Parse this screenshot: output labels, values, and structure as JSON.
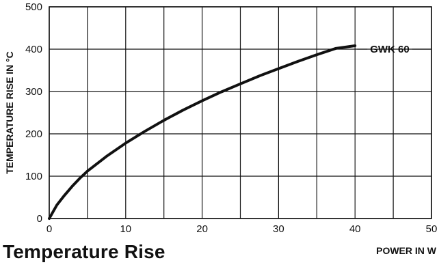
{
  "caption": "Temperature Rise",
  "chart_data": {
    "type": "line",
    "xlabel": "POWER IN W",
    "ylabel": "TEMPERATURE RISE IN °C",
    "xlim": [
      0,
      50
    ],
    "ylim": [
      0,
      500
    ],
    "xticks": [
      "0",
      "10",
      "20",
      "30",
      "40",
      "50"
    ],
    "yticks": [
      "0",
      "100",
      "200",
      "300",
      "400",
      "500"
    ],
    "grid": true,
    "series": [
      {
        "name": "GWK 60",
        "x": [
          0,
          1,
          2,
          3,
          4,
          5,
          7.5,
          10,
          12.5,
          15,
          17.5,
          20,
          22.5,
          25,
          27.5,
          30,
          32.5,
          35,
          37.5,
          40
        ],
        "y": [
          0,
          32,
          55,
          76,
          95,
          112,
          147,
          178,
          206,
          232,
          256,
          278,
          299,
          318,
          337,
          354,
          371,
          387,
          402,
          408
        ]
      }
    ]
  }
}
